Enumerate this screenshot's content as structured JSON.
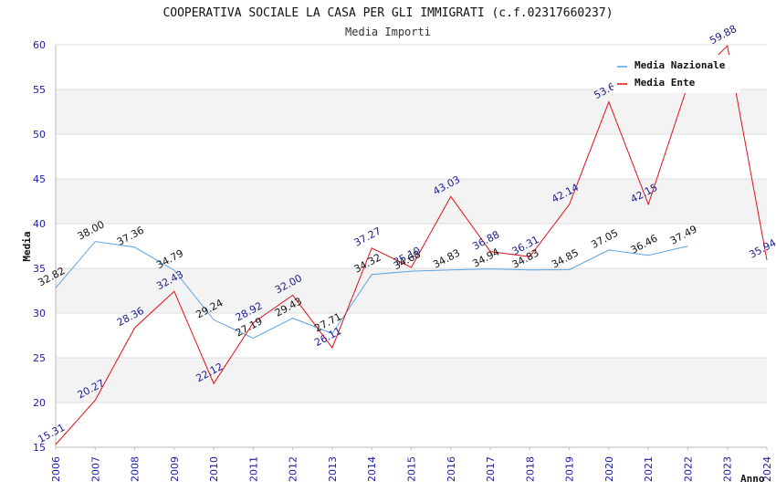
{
  "chart_data": {
    "type": "line",
    "title": "COOPERATIVA SOCIALE LA CASA PER GLI IMMIGRATI (c.f.02317660237)",
    "subtitle": "Media Importi",
    "ylabel": "Media",
    "xlabel": "Anno",
    "ylim": [
      15,
      60
    ],
    "yticks": [
      "15",
      "20",
      "25",
      "30",
      "35",
      "40",
      "45",
      "50",
      "55",
      "60"
    ],
    "x": [
      "2006",
      "2007",
      "2008",
      "2009",
      "2010",
      "2011",
      "2012",
      "2013",
      "2014",
      "2015",
      "2016",
      "2017",
      "2018",
      "2019",
      "2020",
      "2021",
      "2022",
      "2023",
      "2024"
    ],
    "legend_position": "top-right",
    "grid": true,
    "series": [
      {
        "name": "Media Nazionale",
        "color": "#5ba3e0",
        "values": [
          32.82,
          38.0,
          37.36,
          34.79,
          29.24,
          27.19,
          29.43,
          27.71,
          34.32,
          34.68,
          34.83,
          34.94,
          34.83,
          34.85,
          37.05,
          36.46,
          37.49,
          null,
          null
        ],
        "labels": [
          "32.82",
          "38.00",
          "37.36",
          "34.79",
          "29.24",
          "27.19",
          "29.43",
          "27.71",
          "34.32",
          "34.68",
          "34.83",
          "34.94",
          "34.83",
          "34.85",
          "37.05",
          "36.46",
          "37.49",
          "",
          ""
        ]
      },
      {
        "name": "Media Ente",
        "color": "#e0101a",
        "values": [
          15.31,
          20.27,
          28.36,
          32.43,
          22.12,
          28.92,
          32.0,
          26.11,
          37.27,
          35.1,
          43.03,
          36.88,
          36.31,
          42.14,
          53.6,
          42.15,
          55.5,
          59.88,
          35.94
        ],
        "labels": [
          "15.31",
          "20.27",
          "28.36",
          "32.43",
          "22.12",
          "28.92",
          "32.00",
          "26.11",
          "37.27",
          "35.10",
          "43.03",
          "36.88",
          "36.31",
          "42.14",
          "53.6",
          "42.15",
          "",
          "59.88",
          "35.94"
        ]
      }
    ]
  }
}
